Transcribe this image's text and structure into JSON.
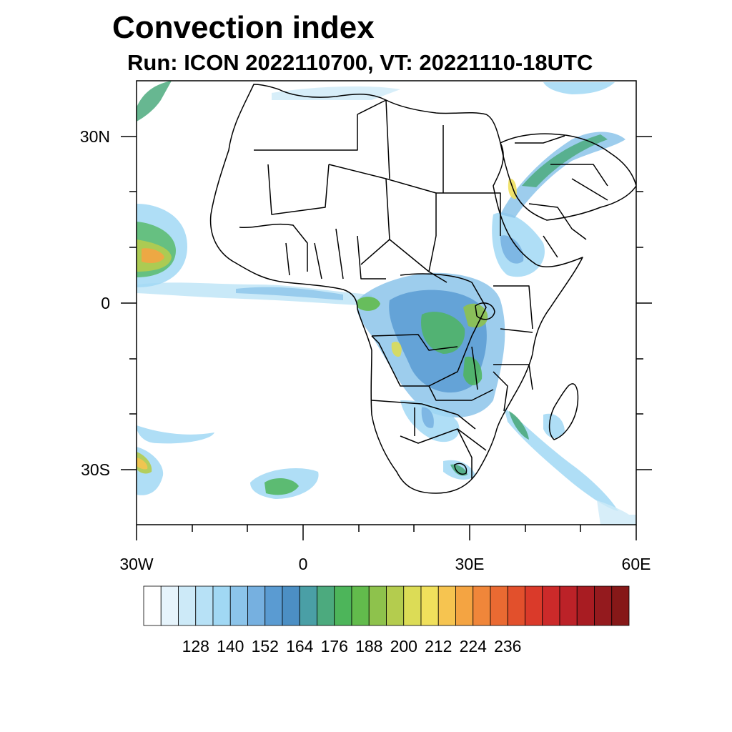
{
  "title": "Convection index",
  "subtitle": "Run: ICON 2022110700,  VT: 20221110-18UTC",
  "axes": {
    "x_labels": [
      "30W",
      "0",
      "30E",
      "60E"
    ],
    "y_labels": [
      "30N",
      "0",
      "30S"
    ]
  },
  "colorbar": {
    "labels": [
      "128",
      "140",
      "152",
      "164",
      "176",
      "188",
      "200",
      "212",
      "224",
      "236"
    ],
    "colors": [
      "#ffffff",
      "#e6f4fc",
      "#cdeaf8",
      "#b7e1f6",
      "#a1d8f4",
      "#8cc4ea",
      "#76b0e0",
      "#5a9bd2",
      "#4c8fc4",
      "#4a9fa6",
      "#4caa7e",
      "#4db55a",
      "#62bb4c",
      "#8ec24c",
      "#b4cc4e",
      "#dcdc56",
      "#f0e05c",
      "#f6c450",
      "#f4a442",
      "#f0863a",
      "#ea6a32",
      "#e2502c",
      "#da3a2a",
      "#cc2a2a",
      "#bc2228",
      "#a81c22",
      "#941a1e",
      "#861818"
    ]
  },
  "map": {
    "lon_range": [
      -30,
      60
    ],
    "lat_range": [
      -40,
      40
    ],
    "land_color": "#ffffff",
    "border_color": "#000000"
  }
}
